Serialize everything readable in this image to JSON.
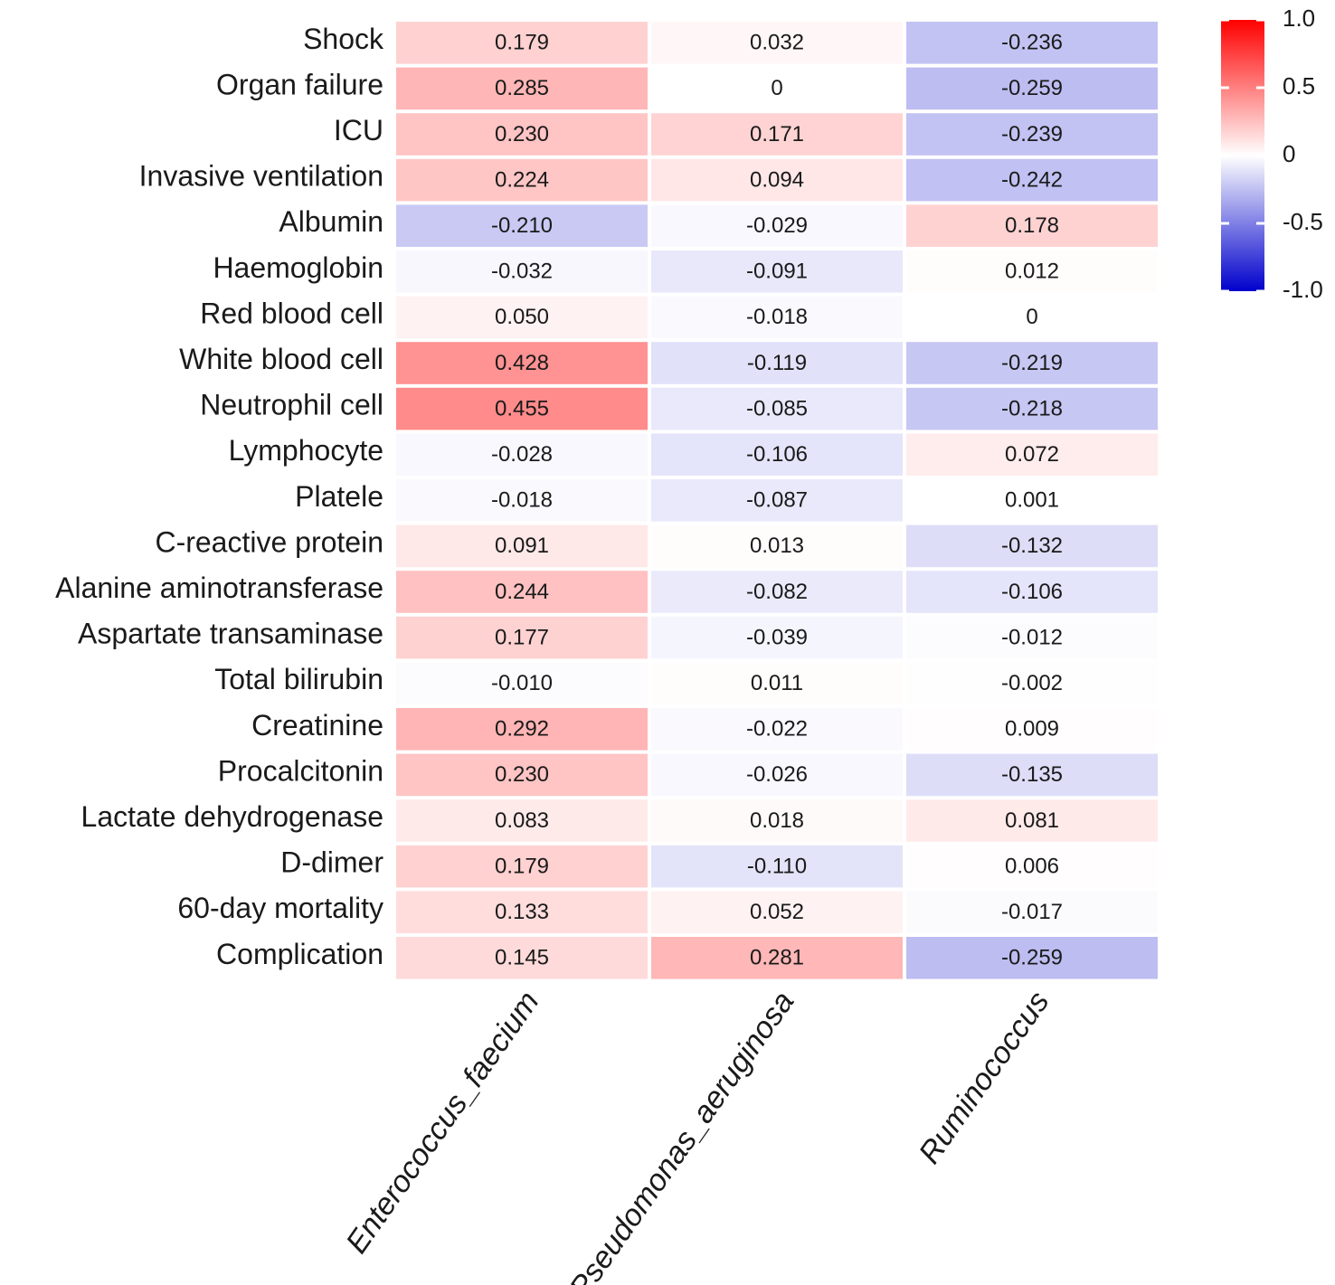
{
  "chart_data": {
    "type": "heatmap",
    "title": "",
    "xlabel": "",
    "ylabel": "",
    "rows": [
      "Shock",
      "Organ failure",
      "ICU",
      "Invasive ventilation",
      "Albumin",
      "Haemoglobin",
      "Red blood cell",
      "White blood cell",
      "Neutrophil cell",
      "Lymphocyte",
      "Platele",
      "C-reactive protein",
      "Alanine aminotransferase",
      "Aspartate transaminase",
      "Total bilirubin",
      "Creatinine",
      "Procalcitonin",
      "Lactate dehydrogenase",
      "D-dimer",
      "60-day mortality",
      "Complication"
    ],
    "columns": [
      "Enterococcus_faecium",
      "Pseudomonas_aeruginosa",
      "Ruminococcus"
    ],
    "values": [
      [
        0.179,
        0.032,
        -0.236
      ],
      [
        0.285,
        0,
        -0.259
      ],
      [
        0.23,
        0.171,
        -0.239
      ],
      [
        0.224,
        0.094,
        -0.242
      ],
      [
        -0.21,
        -0.029,
        0.178
      ],
      [
        -0.032,
        -0.091,
        0.012
      ],
      [
        0.05,
        -0.018,
        0
      ],
      [
        0.428,
        -0.119,
        -0.219
      ],
      [
        0.455,
        -0.085,
        -0.218
      ],
      [
        -0.028,
        -0.106,
        0.072
      ],
      [
        -0.018,
        -0.087,
        0.001
      ],
      [
        0.091,
        0.013,
        -0.132
      ],
      [
        0.244,
        -0.082,
        -0.106
      ],
      [
        0.177,
        -0.039,
        -0.012
      ],
      [
        -0.01,
        0.011,
        -0.002
      ],
      [
        0.292,
        -0.022,
        0.009
      ],
      [
        0.23,
        -0.026,
        -0.135
      ],
      [
        0.083,
        0.018,
        0.081
      ],
      [
        0.179,
        -0.11,
        0.006
      ],
      [
        0.133,
        0.052,
        -0.017
      ],
      [
        0.145,
        0.281,
        -0.259
      ]
    ],
    "value_labels": [
      [
        "0.179",
        "0.032",
        "-0.236"
      ],
      [
        "0.285",
        "0",
        "-0.259"
      ],
      [
        "0.230",
        "0.171",
        "-0.239"
      ],
      [
        "0.224",
        "0.094",
        "-0.242"
      ],
      [
        "-0.210",
        "-0.029",
        "0.178"
      ],
      [
        "-0.032",
        "-0.091",
        "0.012"
      ],
      [
        "0.050",
        "-0.018",
        "0"
      ],
      [
        "0.428",
        "-0.119",
        "-0.219"
      ],
      [
        "0.455",
        "-0.085",
        "-0.218"
      ],
      [
        "-0.028",
        "-0.106",
        "0.072"
      ],
      [
        "-0.018",
        "-0.087",
        "0.001"
      ],
      [
        "0.091",
        "0.013",
        "-0.132"
      ],
      [
        "0.244",
        "-0.082",
        "-0.106"
      ],
      [
        "0.177",
        "-0.039",
        "-0.012"
      ],
      [
        "-0.010",
        "0.011",
        "-0.002"
      ],
      [
        "0.292",
        "-0.022",
        "0.009"
      ],
      [
        "0.230",
        "-0.026",
        "-0.135"
      ],
      [
        "0.083",
        "0.018",
        "0.081"
      ],
      [
        "0.179",
        "-0.110",
        "0.006"
      ],
      [
        "0.133",
        "0.052",
        "-0.017"
      ],
      [
        "0.145",
        "0.281",
        "-0.259"
      ]
    ],
    "color_scale": {
      "min": -1.0,
      "max": 1.0,
      "low_color": "#0000cc",
      "mid_color": "#ffffff",
      "high_color": "#ff0000"
    },
    "legend": {
      "position": "top-right",
      "ticks": [
        {
          "value": 1.0,
          "label": "1.0"
        },
        {
          "value": 0.5,
          "label": "0.5"
        },
        {
          "value": 0,
          "label": "0"
        },
        {
          "value": -0.5,
          "label": "-0.5"
        },
        {
          "value": -1.0,
          "label": "-1.0"
        }
      ]
    }
  }
}
